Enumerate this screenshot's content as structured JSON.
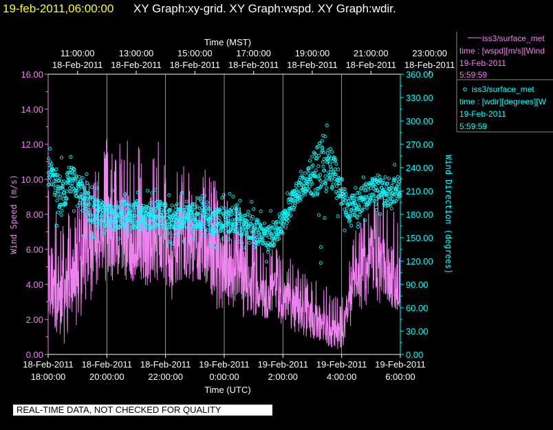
{
  "header": {
    "timestamp": "19-feb-2011,06:00:00",
    "titles": "XY Graph:xy-grid.  XY Graph:wspd.  XY Graph:wdir."
  },
  "colors": {
    "timestamp": "#ffff00",
    "title": "#ffffff",
    "speed": "#ee82ee",
    "direction": "#00ffff",
    "axis": "#ffffff"
  },
  "legend": [
    {
      "marker": "line",
      "source": "iss3/surface_met",
      "var": "time : [wspd][m/s][Wind",
      "date": "19-Feb-2011",
      "time": "5:59:59"
    },
    {
      "marker": "circle",
      "source": "iss3/surface_met",
      "var": "time : [wdir][degrees][W",
      "date": "19-Feb-2011",
      "time": "5:59:59"
    }
  ],
  "disclaimer": "REAL-TIME DATA, NOT CHECKED FOR QUALITY",
  "chart_data": {
    "type": "line",
    "grid": "vertical",
    "xlabel_bottom": "Time (UTC)",
    "xlabel_top": "Time (MST)",
    "ylabel_left": "Wind Speed (m/s)",
    "ylabel_right": "Wind Direction (degrees)",
    "x_utc_hours": [
      18,
      24
    ],
    "top_ticks": [
      {
        "time": "11:00:00",
        "date": "18-Feb-2011"
      },
      {
        "time": "13:00:00",
        "date": "18-Feb-2011"
      },
      {
        "time": "15:00:00",
        "date": "18-Feb-2011"
      },
      {
        "time": "17:00:00",
        "date": "18-Feb-2011"
      },
      {
        "time": "19:00:00",
        "date": "18-Feb-2011"
      },
      {
        "time": "21:00:00",
        "date": "18-Feb-2011"
      },
      {
        "time": "23:00:00",
        "date": "18-Feb-2011"
      }
    ],
    "bottom_ticks": [
      {
        "date": "18-Feb-2011",
        "time": "18:00:00"
      },
      {
        "date": "18-Feb-2011",
        "time": "20:00:00"
      },
      {
        "date": "18-Feb-2011",
        "time": "22:00:00"
      },
      {
        "date": "19-Feb-2011",
        "time": "0:00:00"
      },
      {
        "date": "19-Feb-2011",
        "time": "2:00:00"
      },
      {
        "date": "19-Feb-2011",
        "time": "4:00:00"
      },
      {
        "date": "19-Feb-2011",
        "time": "6:00:00"
      }
    ],
    "left_ticks": [
      "0.00",
      "2.00",
      "4.00",
      "6.00",
      "8.00",
      "10.00",
      "12.00",
      "14.00",
      "16.00"
    ],
    "right_ticks": [
      "0.00",
      "30.00",
      "60.00",
      "90.00",
      "120.00",
      "150.00",
      "180.00",
      "210.00",
      "240.00",
      "270.00",
      "300.00",
      "330.00",
      "360.00"
    ],
    "ylim_speed": [
      0,
      16
    ],
    "ylim_direction": [
      0,
      360
    ],
    "series": [
      {
        "name": "iss3/surface_met time : [wspd][m/s]",
        "marker": "line",
        "axis": "left",
        "x_hours_utc": [
          18.0,
          18.25,
          18.5,
          18.75,
          19.0,
          19.25,
          19.5,
          19.75,
          20.0,
          20.25,
          20.5,
          20.75,
          21.0,
          21.25,
          21.5,
          21.75,
          22.0,
          22.25,
          22.5,
          22.75,
          23.0,
          23.25,
          23.5,
          23.75,
          24.0,
          24.25,
          24.5,
          24.75,
          25.0,
          25.25,
          25.5,
          25.75,
          26.0,
          26.25,
          26.5,
          26.75,
          27.0,
          27.25,
          27.5,
          27.75,
          28.0,
          28.25,
          28.5,
          28.75,
          29.0,
          29.25,
          29.5,
          29.75,
          30.0
        ],
        "center": [
          4.5,
          3.8,
          3.5,
          4.2,
          4.8,
          5.8,
          6.5,
          7.0,
          6.8,
          6.5,
          7.0,
          6.8,
          7.2,
          6.5,
          6.8,
          7.0,
          6.8,
          6.0,
          6.2,
          6.5,
          6.0,
          6.2,
          6.0,
          5.5,
          5.2,
          5.0,
          4.5,
          4.2,
          3.8,
          3.5,
          3.2,
          3.5,
          3.2,
          3.0,
          2.8,
          2.5,
          2.0,
          1.8,
          1.5,
          1.2,
          1.0,
          3.0,
          4.5,
          5.0,
          6.0,
          5.5,
          5.0,
          4.5,
          4.0
        ],
        "low": [
          1.5,
          0.8,
          0.5,
          1.0,
          1.8,
          2.5,
          3.0,
          3.5,
          3.5,
          3.0,
          3.8,
          3.5,
          4.0,
          3.5,
          3.8,
          4.0,
          3.5,
          3.0,
          3.2,
          3.5,
          3.0,
          3.2,
          3.0,
          2.5,
          2.5,
          2.5,
          2.0,
          2.0,
          1.8,
          1.5,
          1.5,
          1.8,
          1.5,
          1.2,
          1.2,
          1.0,
          0.8,
          0.5,
          0.5,
          0.3,
          0.2,
          1.2,
          2.0,
          2.2,
          2.8,
          2.5,
          2.2,
          2.0,
          2.0
        ],
        "high": [
          9.5,
          8.5,
          7.5,
          8.5,
          9.0,
          10.0,
          10.5,
          11.5,
          12.5,
          12.0,
          12.8,
          13.5,
          12.5,
          11.5,
          12.0,
          12.5,
          11.5,
          10.5,
          11.0,
          11.0,
          10.5,
          10.8,
          10.5,
          10.0,
          9.5,
          9.0,
          8.5,
          8.0,
          7.5,
          6.5,
          6.0,
          6.5,
          6.0,
          5.5,
          5.0,
          4.8,
          4.5,
          4.2,
          4.0,
          3.5,
          3.0,
          5.5,
          7.5,
          8.0,
          9.5,
          9.5,
          9.0,
          8.5,
          8.0
        ]
      },
      {
        "name": "iss3/surface_met time : [wdir][degrees]",
        "marker": "circle",
        "axis": "right",
        "x_hours_utc": [
          18.0,
          18.25,
          18.5,
          18.75,
          19.0,
          19.25,
          19.5,
          19.75,
          20.0,
          20.25,
          20.5,
          20.75,
          21.0,
          21.25,
          21.5,
          21.75,
          22.0,
          22.25,
          22.5,
          22.75,
          23.0,
          23.25,
          23.5,
          23.75,
          24.0,
          24.25,
          24.5,
          24.75,
          25.0,
          25.25,
          25.5,
          25.75,
          26.0,
          26.25,
          26.5,
          26.75,
          27.0,
          27.25,
          27.5,
          27.75,
          28.0,
          28.25,
          28.5,
          28.75,
          29.0,
          29.25,
          29.5,
          29.75,
          30.0
        ],
        "center": [
          235,
          215,
          205,
          225,
          215,
          195,
          185,
          180,
          180,
          175,
          182,
          178,
          180,
          175,
          178,
          180,
          178,
          175,
          178,
          180,
          175,
          178,
          172,
          170,
          175,
          172,
          170,
          165,
          160,
          155,
          150,
          155,
          170,
          190,
          210,
          220,
          230,
          240,
          245,
          235,
          200,
          185,
          190,
          200,
          210,
          215,
          205,
          210,
          215
        ],
        "low": [
          185,
          165,
          160,
          175,
          165,
          150,
          140,
          140,
          140,
          135,
          145,
          140,
          140,
          138,
          140,
          142,
          140,
          138,
          140,
          142,
          138,
          140,
          132,
          128,
          135,
          132,
          130,
          125,
          120,
          118,
          115,
          125,
          140,
          160,
          180,
          190,
          140,
          110,
          140,
          160,
          160,
          150,
          155,
          165,
          175,
          180,
          170,
          175,
          180
        ],
        "high": [
          270,
          265,
          255,
          260,
          250,
          235,
          225,
          220,
          215,
          210,
          220,
          215,
          220,
          210,
          215,
          218,
          215,
          212,
          215,
          218,
          212,
          215,
          210,
          205,
          210,
          208,
          205,
          200,
          195,
          190,
          185,
          190,
          205,
          225,
          245,
          255,
          265,
          275,
          300,
          280,
          240,
          220,
          230,
          240,
          245,
          248,
          240,
          245,
          250
        ]
      }
    ]
  }
}
